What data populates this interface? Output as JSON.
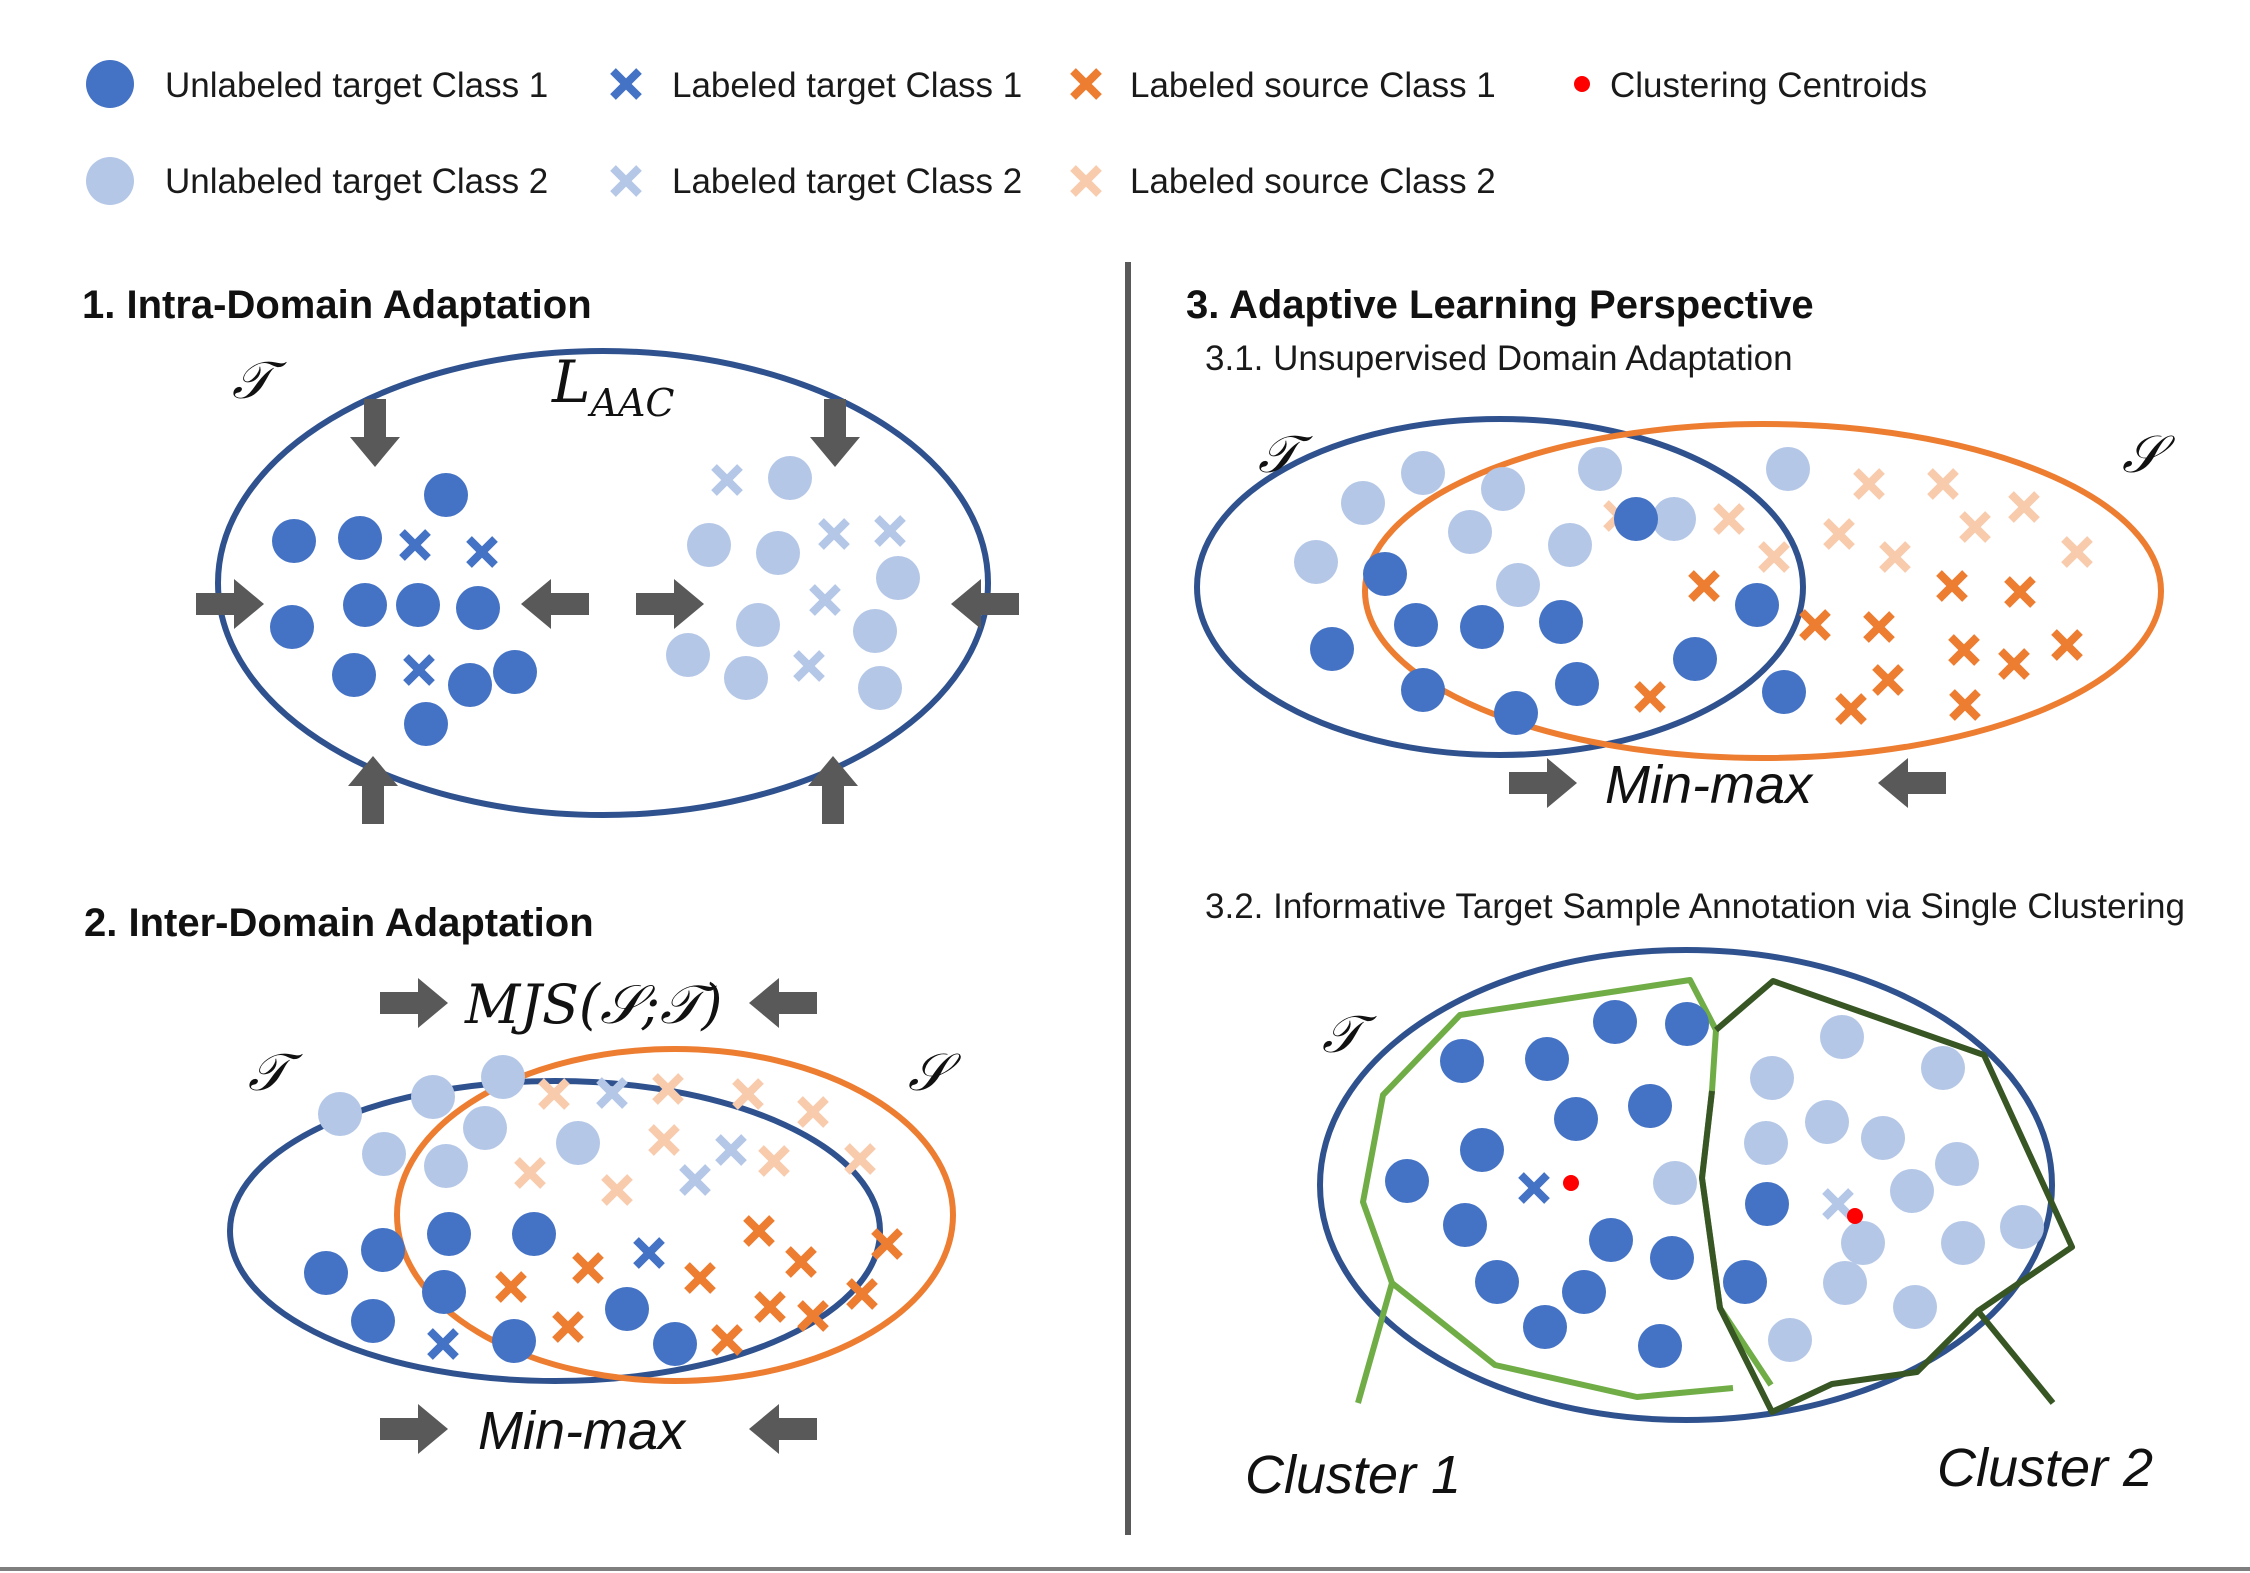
{
  "colors": {
    "dark_blue": "#4472c4",
    "light_blue": "#b4c7e7",
    "dark_orange": "#ed7d31",
    "light_orange": "#f8cbad",
    "centroid_red": "#ff0000",
    "ellipse_navy": "#2f528f",
    "ellipse_orange": "#ed7d31",
    "arrow_gray": "#595959",
    "divider_gray": "#595959",
    "cluster1_green": "#70ad47",
    "cluster2_green": "#375623"
  },
  "legend": {
    "unlabeled_target_1": "Unlabeled target Class 1",
    "unlabeled_target_2": "Unlabeled target Class 2",
    "labeled_target_1": "Labeled target Class 1",
    "labeled_target_2": "Labeled target Class 2",
    "labeled_source_1": "Labeled source Class 1",
    "labeled_source_2": "Labeled source Class 2",
    "centroids": "Clustering Centroids"
  },
  "panel1": {
    "title": "1. Intra-Domain Adaptation",
    "domain_label": "𝒯",
    "loss_label": "L",
    "loss_sub": "AAC"
  },
  "panel2": {
    "title": "2. Inter-Domain Adaptation",
    "divergence_label": "MJS(𝒮;𝒯)",
    "target_label": "𝒯",
    "source_label": "𝒮",
    "minmax_label": "Min-max"
  },
  "panel3": {
    "title": "3. Adaptive Learning Perspective",
    "sub1": "3.1. Unsupervised Domain Adaptation",
    "sub1_target_label": "𝒯",
    "sub1_source_label": "𝒮",
    "sub1_minmax_label": "Min-max",
    "sub2": "3.2. Informative Target Sample Annotation via Single Clustering",
    "sub2_target_label": "𝒯",
    "cluster1_label": "Cluster 1",
    "cluster2_label": "Cluster 2"
  }
}
